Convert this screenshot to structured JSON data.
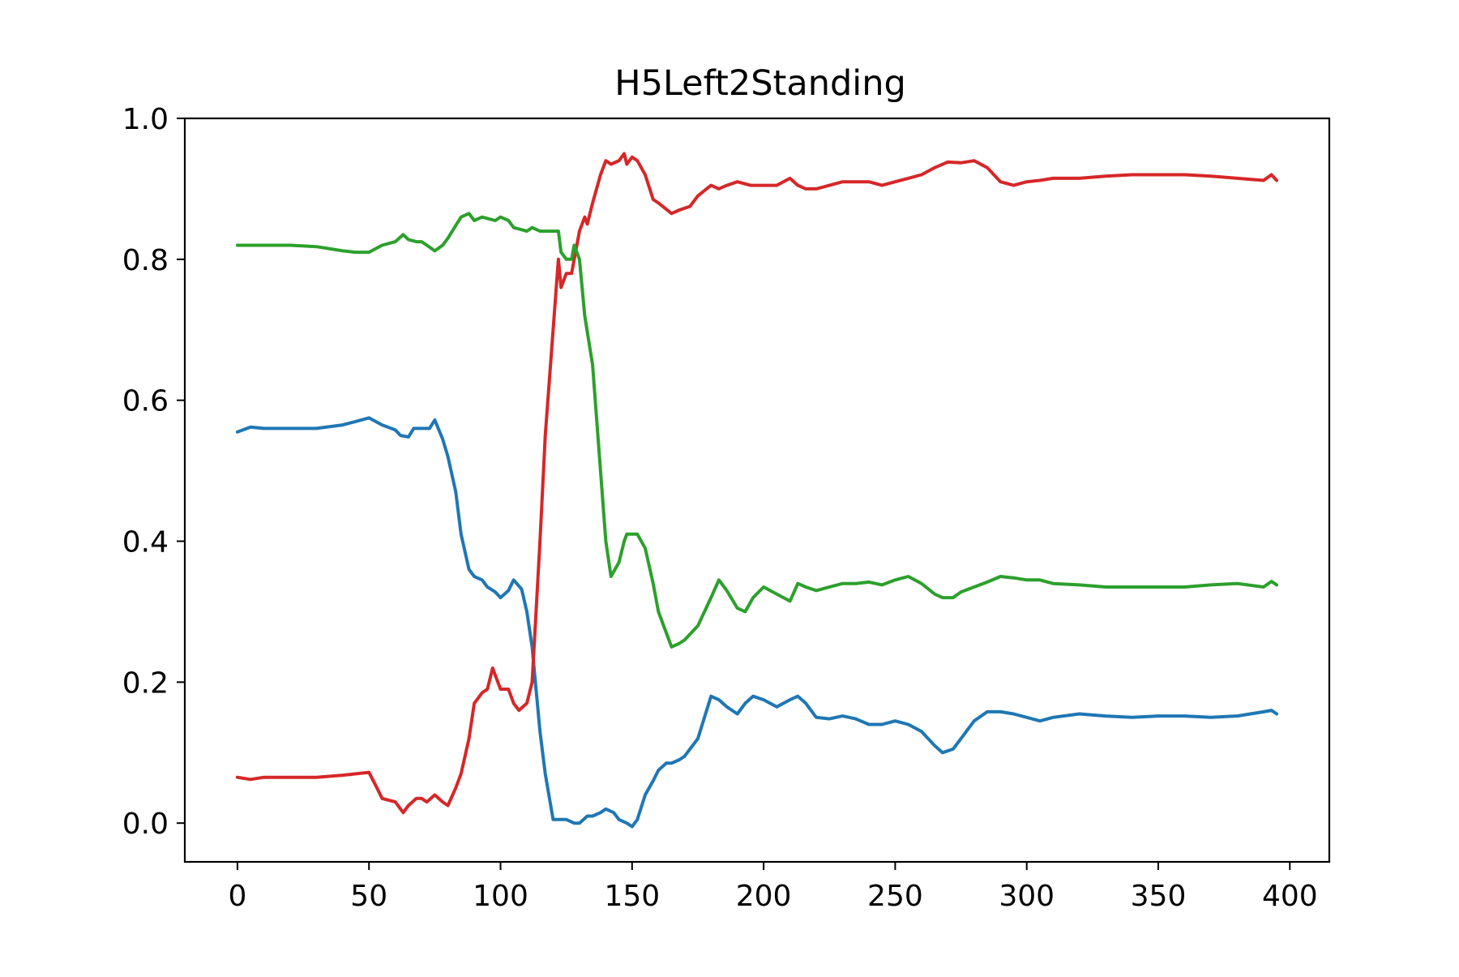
{
  "chart_data": {
    "type": "line",
    "title": "H5Left2Standing",
    "xlabel": "",
    "ylabel": "",
    "xlim": [
      -20,
      415
    ],
    "ylim": [
      -0.055,
      1.0
    ],
    "xticks": [
      0,
      50,
      100,
      150,
      200,
      250,
      300,
      350,
      400
    ],
    "xtick_labels": [
      "0",
      "50",
      "100",
      "150",
      "200",
      "250",
      "300",
      "350",
      "400"
    ],
    "yticks": [
      0.0,
      0.2,
      0.4,
      0.6,
      0.8,
      1.0
    ],
    "ytick_labels": [
      "0.0",
      "0.2",
      "0.4",
      "0.6",
      "0.8",
      "1.0"
    ],
    "grid": false,
    "legend": "none",
    "series": [
      {
        "color": "#1f77b4",
        "x": [
          0,
          5,
          10,
          20,
          30,
          40,
          45,
          50,
          55,
          60,
          62,
          65,
          67,
          70,
          73,
          75,
          78,
          80,
          83,
          85,
          88,
          90,
          93,
          95,
          98,
          100,
          103,
          105,
          108,
          110,
          112,
          113,
          115,
          117,
          120,
          122,
          125,
          128,
          130,
          133,
          135,
          138,
          140,
          143,
          145,
          148,
          150,
          152,
          155,
          158,
          160,
          163,
          165,
          168,
          170,
          175,
          180,
          183,
          186,
          190,
          193,
          196,
          200,
          205,
          210,
          213,
          216,
          220,
          225,
          230,
          235,
          240,
          245,
          250,
          255,
          260,
          265,
          268,
          272,
          275,
          280,
          285,
          290,
          295,
          300,
          305,
          310,
          320,
          330,
          340,
          350,
          360,
          370,
          380,
          390,
          393,
          395
        ],
        "y": [
          0.555,
          0.562,
          0.56,
          0.56,
          0.56,
          0.565,
          0.57,
          0.575,
          0.565,
          0.558,
          0.55,
          0.548,
          0.56,
          0.56,
          0.56,
          0.572,
          0.545,
          0.52,
          0.47,
          0.41,
          0.36,
          0.35,
          0.345,
          0.335,
          0.328,
          0.32,
          0.33,
          0.345,
          0.332,
          0.3,
          0.25,
          0.21,
          0.13,
          0.07,
          0.005,
          0.005,
          0.005,
          0.0,
          0.0,
          0.01,
          0.01,
          0.015,
          0.02,
          0.015,
          0.005,
          0.0,
          -0.005,
          0.005,
          0.04,
          0.06,
          0.075,
          0.085,
          0.085,
          0.09,
          0.095,
          0.12,
          0.18,
          0.175,
          0.165,
          0.155,
          0.17,
          0.18,
          0.175,
          0.165,
          0.175,
          0.18,
          0.17,
          0.15,
          0.148,
          0.152,
          0.148,
          0.14,
          0.14,
          0.145,
          0.14,
          0.13,
          0.11,
          0.1,
          0.105,
          0.12,
          0.145,
          0.158,
          0.158,
          0.155,
          0.15,
          0.145,
          0.15,
          0.155,
          0.152,
          0.15,
          0.152,
          0.152,
          0.15,
          0.152,
          0.158,
          0.16,
          0.155
        ]
      },
      {
        "color": "#d62728",
        "x": [
          0,
          5,
          10,
          20,
          30,
          40,
          45,
          50,
          53,
          55,
          60,
          62,
          63,
          65,
          68,
          70,
          72,
          75,
          78,
          80,
          83,
          85,
          88,
          90,
          93,
          95,
          97,
          98,
          100,
          103,
          105,
          107,
          110,
          112,
          115,
          117,
          120,
          122,
          123,
          125,
          127,
          128,
          130,
          132,
          133,
          135,
          138,
          140,
          142,
          145,
          147,
          148,
          150,
          152,
          155,
          158,
          160,
          165,
          168,
          172,
          175,
          180,
          183,
          186,
          190,
          195,
          200,
          205,
          210,
          213,
          216,
          220,
          225,
          230,
          240,
          245,
          250,
          255,
          260,
          265,
          270,
          275,
          280,
          285,
          290,
          295,
          300,
          305,
          310,
          320,
          330,
          340,
          350,
          360,
          370,
          380,
          390,
          393,
          395
        ],
        "y": [
          0.065,
          0.062,
          0.065,
          0.065,
          0.065,
          0.068,
          0.07,
          0.072,
          0.05,
          0.035,
          0.03,
          0.02,
          0.015,
          0.025,
          0.035,
          0.035,
          0.03,
          0.04,
          0.03,
          0.025,
          0.05,
          0.07,
          0.12,
          0.17,
          0.185,
          0.19,
          0.22,
          0.21,
          0.19,
          0.19,
          0.17,
          0.16,
          0.17,
          0.2,
          0.4,
          0.55,
          0.7,
          0.8,
          0.76,
          0.78,
          0.78,
          0.8,
          0.84,
          0.86,
          0.85,
          0.88,
          0.92,
          0.94,
          0.935,
          0.94,
          0.95,
          0.935,
          0.945,
          0.94,
          0.92,
          0.885,
          0.88,
          0.865,
          0.87,
          0.875,
          0.89,
          0.905,
          0.9,
          0.905,
          0.91,
          0.905,
          0.905,
          0.905,
          0.915,
          0.905,
          0.9,
          0.9,
          0.905,
          0.91,
          0.91,
          0.905,
          0.91,
          0.915,
          0.92,
          0.93,
          0.938,
          0.937,
          0.94,
          0.93,
          0.91,
          0.905,
          0.91,
          0.912,
          0.915,
          0.915,
          0.918,
          0.92,
          0.92,
          0.92,
          0.918,
          0.915,
          0.912,
          0.92,
          0.912
        ]
      },
      {
        "color": "#2ca02c",
        "x": [
          0,
          5,
          10,
          20,
          30,
          40,
          45,
          50,
          55,
          60,
          63,
          65,
          68,
          70,
          72,
          75,
          78,
          80,
          83,
          85,
          88,
          90,
          93,
          95,
          98,
          100,
          103,
          105,
          108,
          110,
          112,
          115,
          117,
          120,
          122,
          123,
          125,
          127,
          128,
          130,
          132,
          135,
          137,
          140,
          142,
          145,
          147,
          148,
          150,
          152,
          155,
          158,
          160,
          163,
          165,
          168,
          170,
          175,
          180,
          183,
          186,
          190,
          193,
          196,
          200,
          205,
          210,
          213,
          216,
          220,
          225,
          230,
          235,
          240,
          245,
          250,
          255,
          260,
          265,
          268,
          272,
          275,
          280,
          285,
          290,
          295,
          300,
          305,
          310,
          320,
          330,
          340,
          350,
          360,
          370,
          380,
          390,
          393,
          395
        ],
        "y": [
          0.82,
          0.82,
          0.82,
          0.82,
          0.818,
          0.812,
          0.81,
          0.81,
          0.82,
          0.825,
          0.835,
          0.828,
          0.825,
          0.825,
          0.82,
          0.812,
          0.82,
          0.83,
          0.848,
          0.86,
          0.865,
          0.855,
          0.86,
          0.858,
          0.855,
          0.86,
          0.855,
          0.845,
          0.842,
          0.84,
          0.845,
          0.84,
          0.84,
          0.84,
          0.84,
          0.81,
          0.8,
          0.8,
          0.82,
          0.8,
          0.72,
          0.65,
          0.55,
          0.4,
          0.35,
          0.37,
          0.4,
          0.41,
          0.41,
          0.41,
          0.39,
          0.34,
          0.3,
          0.27,
          0.25,
          0.255,
          0.26,
          0.28,
          0.32,
          0.345,
          0.33,
          0.305,
          0.3,
          0.32,
          0.335,
          0.325,
          0.315,
          0.34,
          0.335,
          0.33,
          0.335,
          0.34,
          0.34,
          0.342,
          0.338,
          0.345,
          0.35,
          0.34,
          0.325,
          0.32,
          0.32,
          0.328,
          0.335,
          0.342,
          0.35,
          0.348,
          0.345,
          0.345,
          0.34,
          0.338,
          0.335,
          0.335,
          0.335,
          0.335,
          0.338,
          0.34,
          0.335,
          0.343,
          0.338
        ]
      }
    ]
  }
}
